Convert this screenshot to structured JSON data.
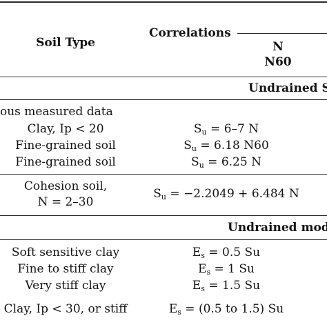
{
  "header": {
    "soil_type": "Soil Type",
    "correlations": "Correlations",
    "sub1": "N",
    "sub2": "N60"
  },
  "sections": {
    "undrained_strength": "Undrained S",
    "undrained_modulus": "Undrained mod"
  },
  "group1": {
    "title": "ous measured data",
    "rows": [
      {
        "soil": "Clay, Ip < 20",
        "sym": "S",
        "sub": "u",
        "rhs": " = 6–7 N"
      },
      {
        "soil": "Fine-grained soil",
        "sym": "S",
        "sub": "u",
        "rhs": " = 6.18 N60"
      },
      {
        "soil": "Fine-grained soil",
        "sym": "S",
        "sub": "u",
        "rhs": " = 6.25 N"
      }
    ]
  },
  "group2": {
    "soil_line1": "Cohesion soil,",
    "soil_line2": "N = 2–30",
    "sym": "S",
    "sub": "u",
    "rhs": " = −2.2049 + 6.484 N"
  },
  "group3": {
    "rows": [
      {
        "soil": "Soft sensitive clay",
        "sym": "E",
        "sub": "s",
        "rhs": " = 0.5 Su"
      },
      {
        "soil": "Fine to stiff clay",
        "sym": "E",
        "sub": "s",
        "rhs": " = 1 Su"
      },
      {
        "soil": "Very stiff clay",
        "sym": "E",
        "sub": "s",
        "rhs": " = 1.5 Su"
      },
      {
        "soil": "Clay, Ip < 30, or stiff",
        "sym": "E",
        "sub": "s",
        "rhs": " = (0.5 to 1.5) Su"
      }
    ]
  }
}
